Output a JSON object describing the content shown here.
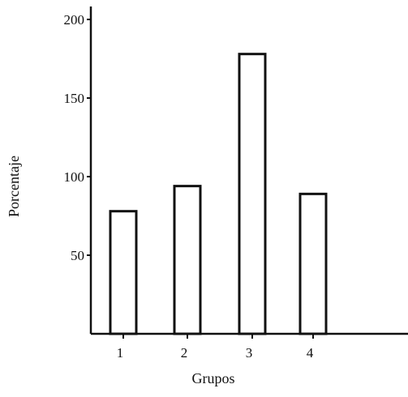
{
  "chart_data": {
    "type": "bar",
    "categories": [
      "1",
      "2",
      "3",
      "4"
    ],
    "values": [
      78,
      94,
      178,
      89
    ],
    "xlabel": "Grupos",
    "ylabel": "Porcentaje",
    "yticks": [
      50,
      100,
      150,
      200
    ],
    "ylim": [
      0,
      200
    ],
    "grid": false,
    "legend": "none",
    "colors": {
      "bar_fill": "#ffffff",
      "bar_stroke": "#111111",
      "axis": "#111111"
    }
  }
}
